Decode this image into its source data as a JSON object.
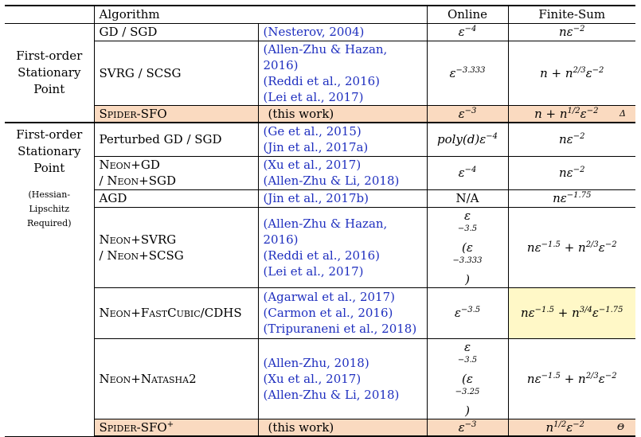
{
  "headers": {
    "algorithm": "Algorithm",
    "online": "Online",
    "finite_sum": "Finite-Sum"
  },
  "categories": {
    "first": [
      "First-order",
      "Stationary",
      "Point"
    ],
    "second": [
      "First-order",
      "Stationary",
      "Point"
    ],
    "second_note": [
      "(Hessian-",
      "Lipschitz",
      "Required)"
    ]
  },
  "rows": {
    "gd": {
      "alg": "GD / SGD",
      "refs": [
        "(Nesterov, 2004)"
      ],
      "online": "ε",
      "online_exp": "−4",
      "fs": "nε",
      "fs_exp": "−2"
    },
    "svrg": {
      "alg": "SVRG / SCSG",
      "refs": [
        "(Allen-Zhu & Hazan, 2016)",
        "(Reddi et al., 2016)",
        "(Lei et al., 2017)"
      ],
      "online": "ε",
      "online_exp": "−3.333",
      "fs": "n + n",
      "fs_exp1": "2/3",
      "fs_mid": "ε",
      "fs_exp2": "−2"
    },
    "spider": {
      "alg": "Spider-SFO",
      "refs": [
        "(this work)"
      ],
      "online": "ε",
      "online_exp": "−3",
      "fs": "n + n",
      "fs_exp1": "1/2",
      "fs_mid": "ε",
      "fs_exp2": "−2",
      "mark": "Δ"
    },
    "pgd": {
      "alg": "Perturbed GD / SGD",
      "refs": [
        "(Ge et al., 2015)",
        "(Jin et al., 2017a)"
      ],
      "online": "poly(d)ε",
      "online_exp": "−4",
      "fs": "nε",
      "fs_exp": "−2"
    },
    "neongd": {
      "alg": [
        "Neon+GD",
        "/ Neon+SGD"
      ],
      "refs": [
        "(Xu et al., 2017)",
        "(Allen-Zhu & Li, 2018)"
      ],
      "online": "ε",
      "online_exp": "−4",
      "fs": "nε",
      "fs_exp": "−2"
    },
    "agd": {
      "alg": "AGD",
      "refs": [
        "(Jin et al., 2017b)"
      ],
      "online": "N/A",
      "fs": "nε",
      "fs_exp": "−1.75"
    },
    "neonsvrg": {
      "alg": [
        "Neon+SVRG",
        "/ Neon+SCSG"
      ],
      "refs": [
        "(Allen-Zhu & Hazan, 2016)",
        "(Reddi et al., 2016)",
        "(Lei et al., 2017)"
      ],
      "online_a": "ε",
      "online_a_exp": "−3.5",
      "online_b": "(ε",
      "online_b_exp": "−3.333",
      "online_b_end": ")",
      "fs": "nε",
      "fs_exp1": "−1.5",
      "fs_mid": " + n",
      "fs_exp2": "2/3",
      "fs_end": "ε",
      "fs_exp3": "−2"
    },
    "neonfc": {
      "alg": "Neon+FastCubic/CDHS",
      "refs": [
        "(Agarwal et al., 2017)",
        "(Carmon et al., 2016)",
        "(Tripuraneni et al., 2018)"
      ],
      "online": "ε",
      "online_exp": "−3.5",
      "fs": "nε",
      "fs_exp1": "−1.5",
      "fs_mid": " + n",
      "fs_exp2": "3/4",
      "fs_end": "ε",
      "fs_exp3": "−1.75"
    },
    "neonnat": {
      "alg": "Neon+Natasha2",
      "refs": [
        "(Allen-Zhu, 2018)",
        "(Xu et al., 2017)",
        "(Allen-Zhu & Li, 2018)"
      ],
      "online_a": "ε",
      "online_a_exp": "−3.5",
      "online_b": "(ε",
      "online_b_exp": "−3.25",
      "online_b_end": ")",
      "fs": "nε",
      "fs_exp1": "−1.5",
      "fs_mid": " + n",
      "fs_exp2": "2/3",
      "fs_end": "ε",
      "fs_exp3": "−2"
    },
    "spiderplus": {
      "alg": "Spider-SFO",
      "alg_sup": "+",
      "refs": [
        "(this work)"
      ],
      "online": "ε",
      "online_exp": "−3",
      "fs": "n",
      "fs_exp1": "1/2",
      "fs_mid": "ε",
      "fs_exp2": "−2",
      "mark": "Θ"
    }
  }
}
